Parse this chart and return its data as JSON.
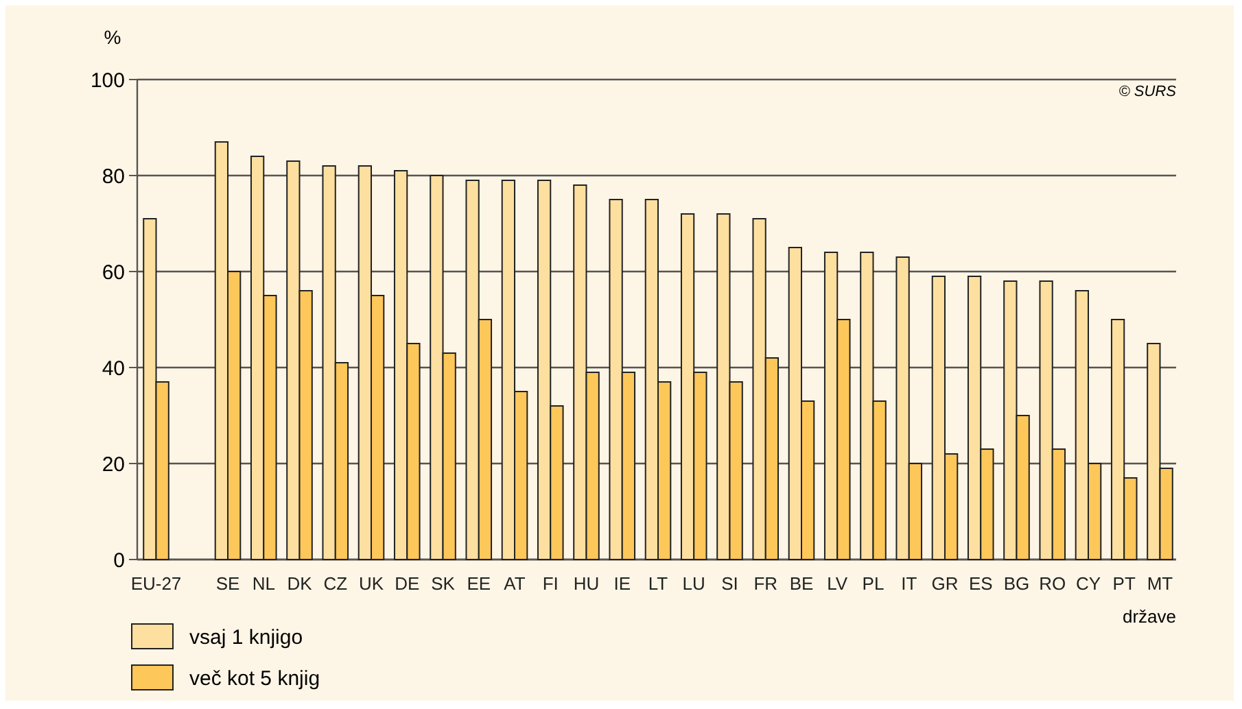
{
  "chart_data": {
    "type": "bar",
    "ylabel": "%",
    "xlabel": "države",
    "annotations": [
      "© SURS"
    ],
    "categories": [
      "EU-27",
      null,
      "SE",
      "NL",
      "DK",
      "CZ",
      "UK",
      "DE",
      "SK",
      "EE",
      "AT",
      "FI",
      "HU",
      "IE",
      "LT",
      "LU",
      "SI",
      "FR",
      "BE",
      "LV",
      "PL",
      "IT",
      "GR",
      "ES",
      "BG",
      "RO",
      "CY",
      "PT",
      "MT"
    ],
    "series": [
      {
        "name": "vsaj 1 knjigo",
        "color": "#fddfa0",
        "values": [
          71,
          null,
          87,
          84,
          83,
          82,
          82,
          81,
          80,
          79,
          79,
          79,
          78,
          75,
          75,
          72,
          72,
          71,
          65,
          64,
          64,
          63,
          59,
          59,
          58,
          58,
          56,
          50,
          45
        ]
      },
      {
        "name": "več kot 5 knjig",
        "color": "#fec75a",
        "values": [
          37,
          null,
          60,
          55,
          56,
          41,
          55,
          45,
          43,
          50,
          35,
          32,
          39,
          39,
          37,
          39,
          37,
          42,
          33,
          50,
          33,
          20,
          22,
          23,
          30,
          23,
          20,
          17,
          19
        ]
      }
    ],
    "ylim": [
      0,
      100
    ],
    "yticks": [
      0,
      20,
      40,
      60,
      80,
      100
    ],
    "grid": "y",
    "legend": "bottom left"
  }
}
